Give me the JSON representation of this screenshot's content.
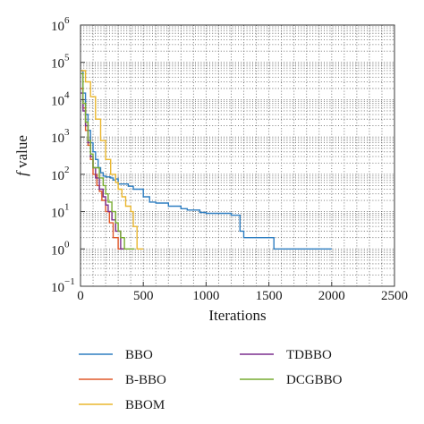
{
  "chart_data": {
    "type": "line",
    "xlabel": "Iterations",
    "ylabel_italic": "f",
    "ylabel_rest": " value",
    "y_scale": "log10",
    "xlim": [
      0,
      2500
    ],
    "ylim": [
      0.1,
      1000000
    ],
    "x_ticks": [
      0,
      500,
      1000,
      1500,
      2000,
      2500
    ],
    "x_tick_labels": [
      "0",
      "500",
      "1000",
      "1500",
      "2000",
      "2500"
    ],
    "y_ticks": [
      {
        "value": 1000000,
        "base": "10",
        "exp": "6"
      },
      {
        "value": 100000,
        "base": "10",
        "exp": "5"
      },
      {
        "value": 10000,
        "base": "10",
        "exp": "4"
      },
      {
        "value": 1000,
        "base": "10",
        "exp": "3"
      },
      {
        "value": 100,
        "base": "10",
        "exp": "2"
      },
      {
        "value": 10,
        "base": "10",
        "exp": "1"
      },
      {
        "value": 1,
        "base": "10",
        "exp": "0"
      },
      {
        "value": 0.1,
        "base": "10",
        "exp": "−1"
      }
    ],
    "grid": "dotted, major and minor",
    "legend_position": "below plot, two columns",
    "series": [
      {
        "name": "BBO",
        "color": "#2e7ec1",
        "x": [
          0,
          20,
          40,
          60,
          80,
          100,
          120,
          140,
          160,
          180,
          200,
          240,
          260,
          280,
          300,
          380,
          420,
          500,
          550,
          600,
          700,
          800,
          850,
          950,
          1000,
          1200,
          1270,
          1300,
          1540,
          2000
        ],
        "y": [
          60000,
          15000,
          4000,
          1500,
          700,
          400,
          250,
          150,
          110,
          90,
          85,
          80,
          70,
          75,
          55,
          48,
          40,
          25,
          18,
          17,
          14,
          12,
          11,
          9.5,
          9,
          8,
          3,
          2,
          1,
          1
        ]
      },
      {
        "name": "B-BBO",
        "color": "#e0582a",
        "x": [
          0,
          20,
          40,
          60,
          80,
          100,
          130,
          150,
          170,
          200,
          230,
          260,
          300,
          330,
          350
        ],
        "y": [
          20000,
          6000,
          1500,
          600,
          250,
          100,
          50,
          35,
          20,
          10,
          5,
          2,
          1,
          1,
          1
        ]
      },
      {
        "name": "BBOM",
        "color": "#eab72f",
        "x": [
          0,
          40,
          80,
          120,
          160,
          200,
          240,
          280,
          300,
          330,
          360,
          400,
          420,
          450,
          480,
          500
        ],
        "y": [
          60000,
          30000,
          12000,
          3000,
          800,
          250,
          100,
          60,
          40,
          25,
          14,
          10,
          4,
          1,
          1,
          1
        ]
      },
      {
        "name": "TDBBO",
        "color": "#7b2f8e",
        "x": [
          0,
          20,
          40,
          60,
          80,
          100,
          120,
          150,
          180,
          200,
          220,
          250,
          280,
          320,
          350
        ],
        "y": [
          15000,
          5000,
          2000,
          700,
          300,
          150,
          80,
          40,
          25,
          15,
          10,
          6,
          3,
          1,
          1
        ]
      },
      {
        "name": "DCGBBO",
        "color": "#77ac30",
        "x": [
          0,
          20,
          40,
          60,
          80,
          100,
          150,
          180,
          200,
          220,
          250,
          280,
          300,
          320,
          350,
          400,
          430
        ],
        "y": [
          50000,
          8000,
          2500,
          800,
          350,
          150,
          80,
          50,
          30,
          18,
          10,
          5,
          3,
          2,
          1,
          1,
          1
        ]
      }
    ]
  }
}
